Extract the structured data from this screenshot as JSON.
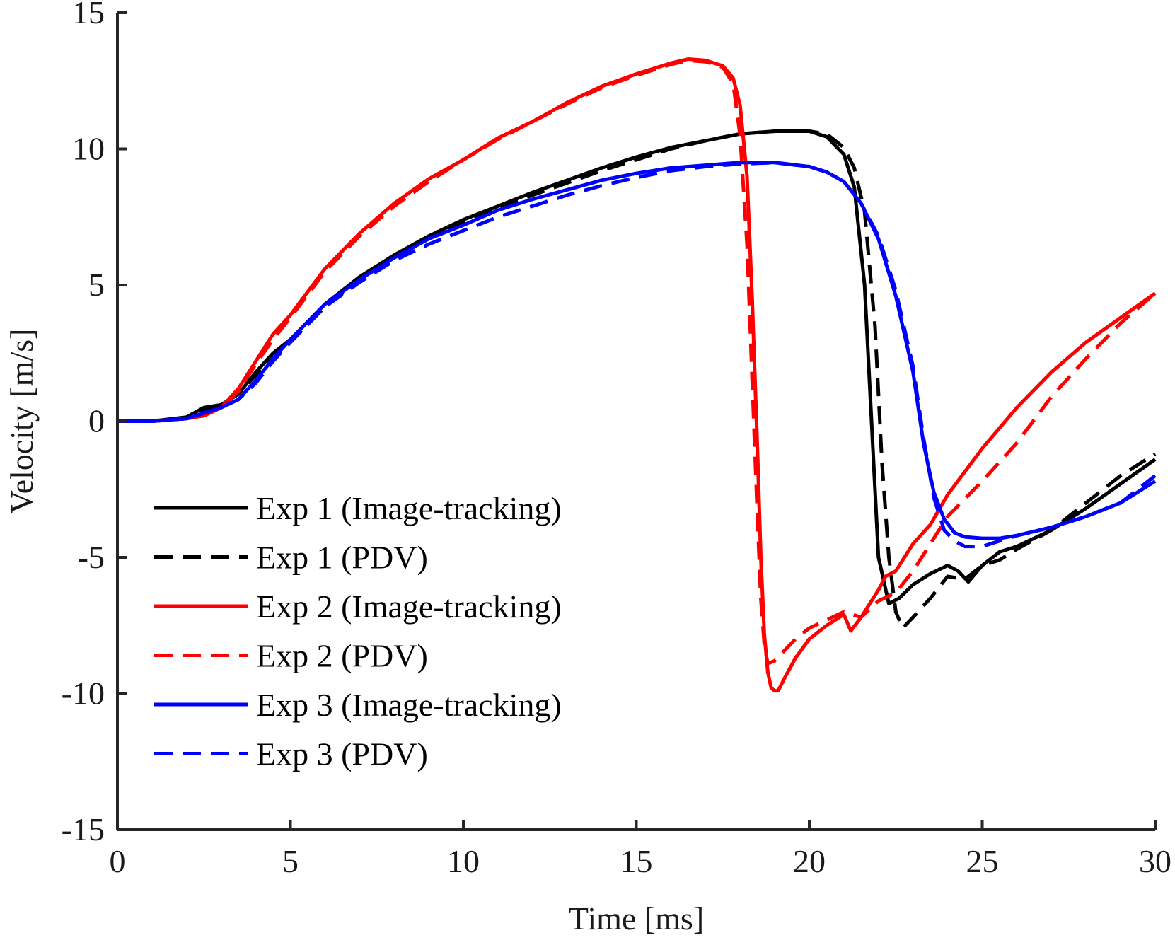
{
  "chart_data": {
    "type": "line",
    "xlabel": "Time [ms]",
    "ylabel": "Velocity [m/s]",
    "xlim": [
      0,
      30
    ],
    "ylim": [
      -15,
      15
    ],
    "xticks": [
      0,
      5,
      10,
      15,
      20,
      25,
      30
    ],
    "yticks": [
      -15,
      -10,
      -5,
      0,
      5,
      10,
      15
    ],
    "grid": false,
    "legend_position": "lower-left",
    "series": [
      {
        "name": "Exp 1 (Image-tracking)",
        "color": "#000000",
        "dash": "solid",
        "x": [
          0,
          1,
          2,
          2.5,
          3,
          3.5,
          4,
          4.5,
          5,
          6,
          7,
          8,
          9,
          10,
          11,
          12,
          13,
          14,
          15,
          16,
          17,
          18,
          19,
          20,
          20.5,
          21,
          21.3,
          21.6,
          21.8,
          22.0,
          22.3,
          22.6,
          23,
          23.5,
          24,
          24.3,
          24.6,
          25,
          25.5,
          26,
          27,
          28,
          29,
          30
        ],
        "y": [
          0,
          0,
          0.15,
          0.5,
          0.6,
          1.0,
          1.8,
          2.5,
          3.0,
          4.3,
          5.3,
          6.1,
          6.8,
          7.4,
          7.9,
          8.4,
          8.85,
          9.3,
          9.7,
          10.05,
          10.3,
          10.55,
          10.65,
          10.65,
          10.45,
          9.8,
          8.6,
          5.0,
          0.0,
          -5.0,
          -6.7,
          -6.5,
          -6.0,
          -5.6,
          -5.3,
          -5.5,
          -5.9,
          -5.3,
          -4.8,
          -4.6,
          -4.0,
          -3.2,
          -2.3,
          -1.4
        ]
      },
      {
        "name": "Exp 1 (PDV)",
        "color": "#000000",
        "dash": "dashed",
        "x": [
          0,
          1,
          2,
          2.5,
          3,
          3.5,
          4,
          4.5,
          5,
          6,
          7,
          8,
          9,
          10,
          11,
          12,
          13,
          14,
          15,
          16,
          17,
          18,
          19,
          20,
          20.5,
          21,
          21.3,
          21.6,
          21.9,
          22.1,
          22.3,
          22.5,
          22.7,
          23,
          23.5,
          24,
          24.5,
          25,
          25.5,
          26,
          27,
          28,
          29,
          30
        ],
        "y": [
          0,
          0,
          0.1,
          0.4,
          0.6,
          1.0,
          1.7,
          2.3,
          2.9,
          4.2,
          5.2,
          6.0,
          6.7,
          7.3,
          7.8,
          8.3,
          8.75,
          9.2,
          9.6,
          10.0,
          10.3,
          10.55,
          10.65,
          10.65,
          10.55,
          10.05,
          9.3,
          7.7,
          3.5,
          -1.5,
          -5.0,
          -7.0,
          -7.6,
          -7.2,
          -6.5,
          -5.7,
          -5.8,
          -5.3,
          -5.1,
          -4.7,
          -4.0,
          -3.0,
          -2.0,
          -1.2
        ]
      },
      {
        "name": "Exp 2 (Image-tracking)",
        "color": "#ff0000",
        "dash": "solid",
        "x": [
          0,
          1,
          2,
          2.5,
          3,
          3.5,
          4,
          4.5,
          5,
          6,
          7,
          8,
          9,
          10,
          11,
          12,
          13,
          14,
          15,
          16,
          16.5,
          17,
          17.5,
          17.8,
          18.0,
          18.2,
          18.35,
          18.5,
          18.6,
          18.7,
          18.8,
          18.9,
          19.0,
          19.1,
          19.3,
          19.6,
          20,
          20.5,
          21,
          21.2,
          21.5,
          21.8,
          22,
          22.2,
          22.5,
          23,
          23.5,
          24,
          25,
          26,
          27,
          28,
          29,
          30
        ],
        "y": [
          0,
          0,
          0.1,
          0.2,
          0.5,
          1.2,
          2.2,
          3.2,
          3.9,
          5.6,
          6.9,
          8.0,
          8.9,
          9.6,
          10.4,
          11.0,
          11.7,
          12.3,
          12.75,
          13.15,
          13.3,
          13.25,
          13.05,
          12.6,
          11.6,
          9.0,
          4.5,
          -1.0,
          -5.0,
          -7.8,
          -9.2,
          -9.8,
          -9.9,
          -9.9,
          -9.4,
          -8.7,
          -8.0,
          -7.5,
          -7.1,
          -7.7,
          -7.2,
          -6.6,
          -6.2,
          -5.7,
          -5.5,
          -4.5,
          -3.8,
          -2.7,
          -1.0,
          0.5,
          1.8,
          2.9,
          3.8,
          4.7
        ]
      },
      {
        "name": "Exp 2 (PDV)",
        "color": "#ff0000",
        "dash": "dashed",
        "x": [
          0,
          1,
          2,
          2.5,
          3,
          3.5,
          4,
          4.5,
          5,
          6,
          7,
          8,
          9,
          10,
          11,
          12,
          13,
          14,
          15,
          16,
          16.5,
          17,
          17.5,
          17.8,
          18.0,
          18.2,
          18.35,
          18.5,
          18.6,
          18.7,
          18.8,
          19.0,
          19.3,
          19.6,
          20,
          20.5,
          21,
          21.5,
          22,
          22.5,
          23,
          23.5,
          24,
          25,
          26,
          27,
          28,
          29,
          30
        ],
        "y": [
          0,
          0,
          0.1,
          0.2,
          0.5,
          1.1,
          2.1,
          3.0,
          3.8,
          5.5,
          6.8,
          7.9,
          8.8,
          9.6,
          10.35,
          11.0,
          11.65,
          12.25,
          12.7,
          13.1,
          13.25,
          13.2,
          13.0,
          12.4,
          10.5,
          6.5,
          1.5,
          -3.5,
          -6.5,
          -8.2,
          -8.9,
          -8.8,
          -8.4,
          -8.0,
          -7.6,
          -7.3,
          -7.0,
          -7.2,
          -6.6,
          -6.3,
          -5.5,
          -4.5,
          -3.5,
          -2.2,
          -0.8,
          0.9,
          2.3,
          3.6,
          4.7
        ]
      },
      {
        "name": "Exp 3 (Image-tracking)",
        "color": "#0000ff",
        "dash": "solid",
        "x": [
          0,
          1,
          2,
          2.5,
          3,
          3.5,
          4,
          4.5,
          5,
          6,
          7,
          8,
          9,
          10,
          11,
          12,
          13,
          14,
          15,
          16,
          17,
          18,
          19,
          20,
          20.5,
          21,
          21.5,
          22,
          22.5,
          23,
          23.3,
          23.6,
          23.9,
          24.2,
          24.5,
          25,
          25.5,
          26,
          27,
          28,
          29,
          30
        ],
        "y": [
          0,
          0,
          0.1,
          0.3,
          0.5,
          0.8,
          1.5,
          2.3,
          3.0,
          4.3,
          5.2,
          6.0,
          6.7,
          7.2,
          7.75,
          8.15,
          8.5,
          8.85,
          9.1,
          9.3,
          9.4,
          9.5,
          9.5,
          9.35,
          9.15,
          8.8,
          8.0,
          6.7,
          4.6,
          1.8,
          -0.8,
          -2.6,
          -3.6,
          -4.1,
          -4.25,
          -4.3,
          -4.3,
          -4.2,
          -3.9,
          -3.5,
          -3.0,
          -2.2
        ]
      },
      {
        "name": "Exp 3 (PDV)",
        "color": "#0000ff",
        "dash": "dashed",
        "x": [
          0,
          1,
          2,
          2.5,
          3,
          3.5,
          4,
          4.5,
          5,
          6,
          7,
          8,
          9,
          10,
          11,
          12,
          13,
          14,
          15,
          16,
          17,
          18,
          19,
          20,
          20.5,
          21,
          21.5,
          22,
          22.5,
          23,
          23.3,
          23.6,
          23.9,
          24.2,
          24.5,
          25,
          25.5,
          26,
          27,
          28,
          29,
          30
        ],
        "y": [
          0,
          0,
          0.1,
          0.3,
          0.5,
          0.8,
          1.4,
          2.2,
          2.9,
          4.2,
          5.1,
          5.9,
          6.5,
          7.0,
          7.5,
          7.9,
          8.3,
          8.65,
          8.95,
          9.2,
          9.35,
          9.45,
          9.5,
          9.35,
          9.15,
          8.8,
          8.0,
          6.8,
          4.8,
          2.0,
          -0.6,
          -2.8,
          -4.0,
          -4.4,
          -4.6,
          -4.6,
          -4.4,
          -4.2,
          -3.9,
          -3.5,
          -3.0,
          -2.0
        ]
      }
    ]
  }
}
